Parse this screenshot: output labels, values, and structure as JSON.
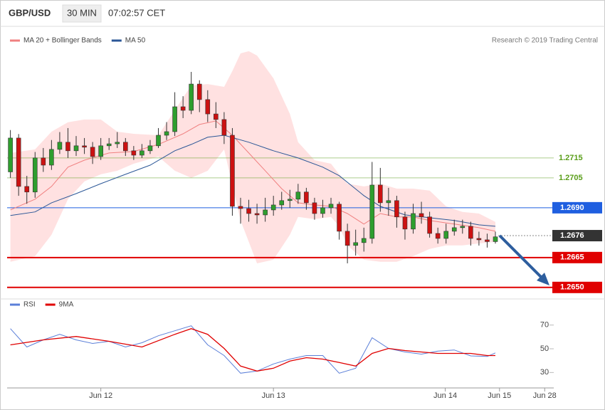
{
  "header": {
    "symbol": "GBP/USD",
    "interval": "30 MIN",
    "time": "07:02:57 CET"
  },
  "chart_data": [
    {
      "type": "candlestick",
      "annotation": "Research © 2019 Trading Central",
      "up_color": "#2e9e2e",
      "down_color": "#cc1111",
      "xlim": [
        -0.4,
        66.1
      ],
      "ylim": [
        1.2646,
        1.278
      ],
      "xticks": [
        {
          "value": 11,
          "label": "Jun 12"
        },
        {
          "value": 32,
          "label": "Jun 13"
        },
        {
          "value": 52.9,
          "label": "Jun 14"
        },
        {
          "value": 59.5,
          "label": "Jun 15"
        },
        {
          "value": 65,
          "label": "Jun 28"
        }
      ],
      "open": [
        1.2708,
        1.2725,
        1.27007,
        1.26979,
        1.2715,
        1.27114,
        1.27193,
        1.27229,
        1.27186,
        1.27211,
        1.27204,
        1.27157,
        1.27211,
        1.27221,
        1.27229,
        1.27186,
        1.27164,
        1.27186,
        1.27211,
        1.27264,
        1.27282,
        1.27407,
        1.27389,
        1.27521,
        1.27443,
        1.27371,
        1.27343,
        1.27264,
        1.26907,
        1.26896,
        1.26871,
        1.26864,
        1.26889,
        1.26914,
        1.26936,
        1.26943,
        1.26979,
        1.26925,
        1.26871,
        1.269,
        1.26918,
        1.26782,
        1.26711,
        1.26725,
        1.26746,
        1.27014,
        1.26925,
        1.26936,
        1.26854,
        1.26793,
        1.26871,
        1.26854,
        1.26771,
        1.26746,
        1.26782,
        1.268,
        1.26807,
        1.26746,
        1.26739,
        1.2673
      ],
      "high": [
        1.2729,
        1.2727,
        1.2706,
        1.2718,
        1.272,
        1.2724,
        1.2728,
        1.273,
        1.2726,
        1.2725,
        1.2723,
        1.2725,
        1.2725,
        1.2728,
        1.2725,
        1.2721,
        1.2722,
        1.2724,
        1.273,
        1.2733,
        1.2748,
        1.2746,
        1.27582,
        1.2754,
        1.2749,
        1.2743,
        1.2738,
        1.273,
        1.2695,
        1.2694,
        1.2692,
        1.2695,
        1.2696,
        1.2698,
        1.2699,
        1.2702,
        1.27,
        1.2695,
        1.2694,
        1.2695,
        1.2693,
        1.2682,
        1.2679,
        1.268,
        1.2713,
        1.271,
        1.27,
        1.2696,
        1.2688,
        1.2692,
        1.2693,
        1.2688,
        1.268,
        1.2682,
        1.2684,
        1.2684,
        1.2683,
        1.2678,
        1.2677,
        1.2678
      ],
      "low": [
        1.2705,
        1.2696,
        1.2692,
        1.2695,
        1.2708,
        1.2709,
        1.2717,
        1.2715,
        1.2716,
        1.2717,
        1.2712,
        1.2714,
        1.2719,
        1.272,
        1.2716,
        1.2714,
        1.2715,
        1.2717,
        1.272,
        1.2724,
        1.2726,
        1.2735,
        1.2737,
        1.2738,
        1.2733,
        1.273,
        1.2722,
        1.2686,
        1.2682,
        1.2683,
        1.2682,
        1.2683,
        1.2686,
        1.2689,
        1.269,
        1.2692,
        1.2689,
        1.2684,
        1.2685,
        1.2687,
        1.2674,
        1.26621,
        1.2666,
        1.2668,
        1.2672,
        1.2688,
        1.2686,
        1.268,
        1.2674,
        1.2677,
        1.2682,
        1.2675,
        1.2672,
        1.2672,
        1.2676,
        1.2677,
        1.2671,
        1.2671,
        1.267,
        1.2672
      ],
      "close": [
        1.2725,
        1.27007,
        1.26979,
        1.2715,
        1.27114,
        1.27193,
        1.27229,
        1.27186,
        1.27211,
        1.27204,
        1.27157,
        1.27211,
        1.27221,
        1.27229,
        1.27186,
        1.27164,
        1.27186,
        1.27211,
        1.27264,
        1.27282,
        1.27407,
        1.27389,
        1.27521,
        1.27443,
        1.27371,
        1.27343,
        1.27264,
        1.26907,
        1.26896,
        1.26871,
        1.26864,
        1.26889,
        1.26914,
        1.26936,
        1.26943,
        1.26979,
        1.26925,
        1.26871,
        1.269,
        1.26918,
        1.26782,
        1.26711,
        1.26725,
        1.26746,
        1.27014,
        1.26925,
        1.26936,
        1.26854,
        1.26793,
        1.26871,
        1.26854,
        1.26771,
        1.26746,
        1.26782,
        1.268,
        1.26807,
        1.26746,
        1.26739,
        1.2673,
        1.26754
      ],
      "bands": {
        "color": "#ffd9d9",
        "x": [
          0,
          3,
          5,
          7,
          9,
          11,
          13,
          15,
          18,
          20,
          22,
          24,
          26,
          27,
          28,
          29,
          30,
          32,
          34,
          35,
          37,
          39,
          40,
          41,
          43,
          45,
          47,
          49,
          51,
          53,
          55,
          57,
          59
        ],
        "upper": [
          1.27175,
          1.27193,
          1.27282,
          1.27329,
          1.27343,
          1.27343,
          1.27282,
          1.27271,
          1.27264,
          1.27389,
          1.27514,
          1.27521,
          1.27507,
          1.27586,
          1.27675,
          1.27686,
          1.27664,
          1.2755,
          1.27371,
          1.27229,
          1.27139,
          1.27121,
          1.27068,
          1.27021,
          1.27007,
          1.27021,
          1.26996,
          1.26996,
          1.26986,
          1.26907,
          1.26879,
          1.26871,
          1.26829
        ],
        "lower": [
          1.26629,
          1.26657,
          1.26764,
          1.26943,
          1.27032,
          1.27068,
          1.27086,
          1.27121,
          1.27157,
          1.27086,
          1.2705,
          1.27086,
          1.27193,
          1.27014,
          1.26836,
          1.26729,
          1.26621,
          1.26639,
          1.26764,
          1.26854,
          1.26843,
          1.26854,
          1.26807,
          1.26711,
          1.26639,
          1.26629,
          1.26629,
          1.26657,
          1.26693,
          1.26711,
          1.26711,
          1.26721,
          1.26729
        ]
      },
      "series": [
        {
          "name": "MA 20 + Bollinger Bands",
          "color": "#f08080",
          "x": [
            0,
            3,
            5,
            7,
            9,
            12,
            15,
            18,
            21,
            23,
            25,
            27,
            29,
            31,
            33,
            35,
            37,
            39,
            41,
            43,
            45,
            47,
            49,
            51,
            54,
            57,
            59
          ],
          "values": [
            1.26889,
            1.26943,
            1.27007,
            1.27104,
            1.27139,
            1.27175,
            1.27182,
            1.27218,
            1.27271,
            1.27318,
            1.27336,
            1.27264,
            1.27175,
            1.27086,
            1.26996,
            1.26925,
            1.26914,
            1.26907,
            1.26871,
            1.26818,
            1.26871,
            1.26854,
            1.26854,
            1.26836,
            1.26818,
            1.268,
            1.26782
          ]
        },
        {
          "name": "MA 50",
          "color": "#2b5797",
          "x": [
            0,
            3,
            5,
            8,
            11,
            14,
            17,
            20,
            22,
            24,
            26,
            29,
            32,
            35,
            38,
            40,
            43,
            45,
            48,
            51,
            54,
            57,
            59
          ],
          "values": [
            1.26861,
            1.26879,
            1.26925,
            1.26971,
            1.27021,
            1.27068,
            1.27114,
            1.27186,
            1.27218,
            1.27254,
            1.27264,
            1.27229,
            1.27186,
            1.2715,
            1.27104,
            1.27061,
            1.26961,
            1.26907,
            1.26864,
            1.2685,
            1.26836,
            1.26814,
            1.26807
          ]
        }
      ],
      "levels": [
        {
          "value": 1.2715,
          "label": "1.2715",
          "color": "#5a9e1a",
          "boxed": false,
          "style": "solid"
        },
        {
          "value": 1.2705,
          "label": "1.2705",
          "color": "#5a9e1a",
          "boxed": false,
          "style": "solid"
        },
        {
          "value": 1.269,
          "label": "1.2690",
          "color": "#1f5fe0",
          "boxed": true,
          "style": "solid"
        },
        {
          "value": 1.2676,
          "label": "1.2676",
          "color": "#333333",
          "boxed": true,
          "style": "dotted"
        },
        {
          "value": 1.2665,
          "label": "1.2665",
          "color": "#e00000",
          "boxed": true,
          "style": "solid"
        },
        {
          "value": 1.265,
          "label": "1.2650",
          "color": "#e00000",
          "boxed": true,
          "style": "solid"
        }
      ]
    },
    {
      "type": "line",
      "ylim": [
        20,
        89
      ],
      "yticks": [
        70,
        50,
        30
      ],
      "series": [
        {
          "name": "RSI",
          "color": "#5b7fd8",
          "x": [
            0,
            2,
            4,
            6,
            8,
            10,
            12,
            14,
            16,
            18,
            20,
            22,
            24,
            26,
            28,
            30,
            32,
            34,
            36,
            38,
            40,
            42,
            44,
            46,
            48,
            50,
            52,
            54,
            56,
            58,
            59
          ],
          "values": [
            67,
            51.5,
            57.5,
            62.2,
            57.5,
            54.5,
            56.3,
            51.5,
            55.1,
            61,
            65.2,
            69.4,
            53.3,
            44.3,
            29.4,
            31.2,
            37.2,
            41.3,
            44.3,
            44.3,
            29.4,
            33.6,
            59.3,
            50.3,
            47.3,
            45.5,
            48,
            49,
            44,
            43.5,
            46.5
          ]
        },
        {
          "name": "9MA",
          "color": "#e00000",
          "x": [
            0,
            4,
            8,
            12,
            16,
            20,
            22,
            24,
            26,
            28,
            30,
            32,
            34,
            36,
            38,
            40,
            42,
            44,
            46,
            48,
            50,
            52,
            54,
            56,
            58,
            59
          ],
          "values": [
            53.3,
            57.5,
            60.4,
            56.3,
            51.5,
            62.2,
            67,
            62.2,
            50.3,
            35.4,
            31.2,
            33.6,
            39.6,
            42.5,
            41.3,
            38.4,
            35.4,
            46.1,
            50.3,
            48.5,
            47.3,
            46.1,
            46.1,
            46.1,
            44.3,
            44.3
          ]
        }
      ]
    }
  ]
}
